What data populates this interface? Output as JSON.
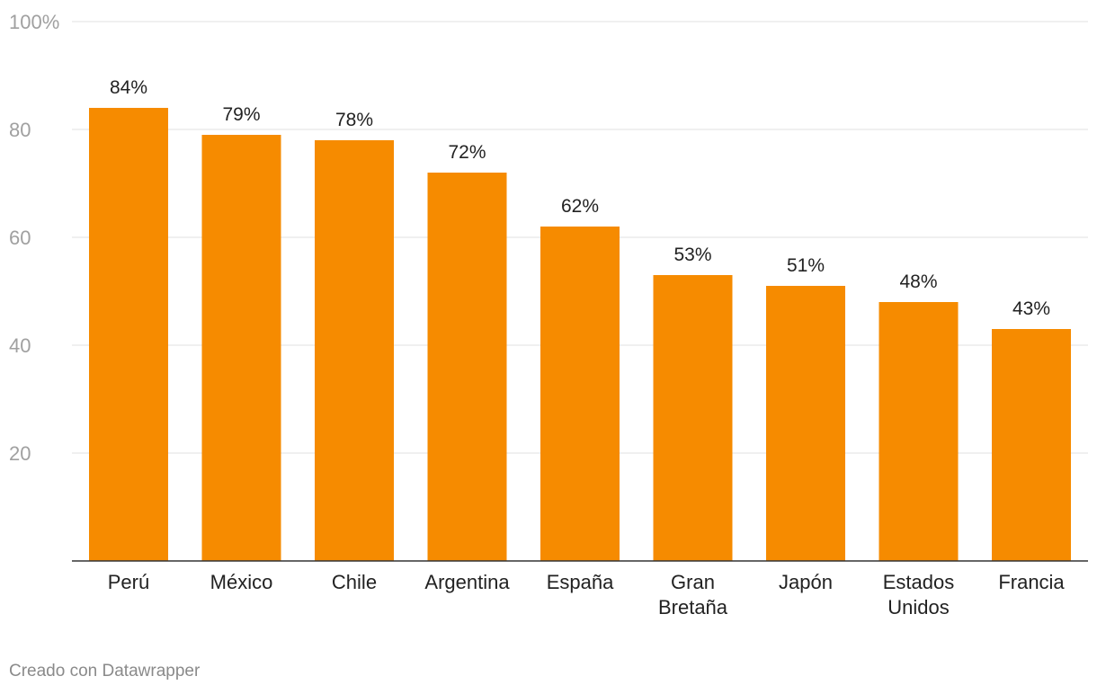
{
  "chart_data": {
    "type": "bar",
    "categories": [
      [
        "Perú"
      ],
      [
        "México"
      ],
      [
        "Chile"
      ],
      [
        "Argentina"
      ],
      [
        "España"
      ],
      [
        "Gran",
        "Bretaña"
      ],
      [
        "Japón"
      ],
      [
        "Estados",
        "Unidos"
      ],
      [
        "Francia"
      ]
    ],
    "values": [
      84,
      79,
      78,
      72,
      62,
      53,
      51,
      48,
      43
    ],
    "value_labels": [
      "84%",
      "79%",
      "78%",
      "72%",
      "62%",
      "53%",
      "51%",
      "48%",
      "43%"
    ],
    "y_ticks": [
      "20",
      "40",
      "60",
      "80",
      "100%"
    ],
    "y_tick_values": [
      20,
      40,
      60,
      80,
      100
    ],
    "ylim": [
      0,
      100
    ],
    "title": "",
    "xlabel": "",
    "ylabel": "",
    "grid": true,
    "bar_color": "#f68b00"
  },
  "footer": {
    "credit": "Creado con Datawrapper"
  }
}
